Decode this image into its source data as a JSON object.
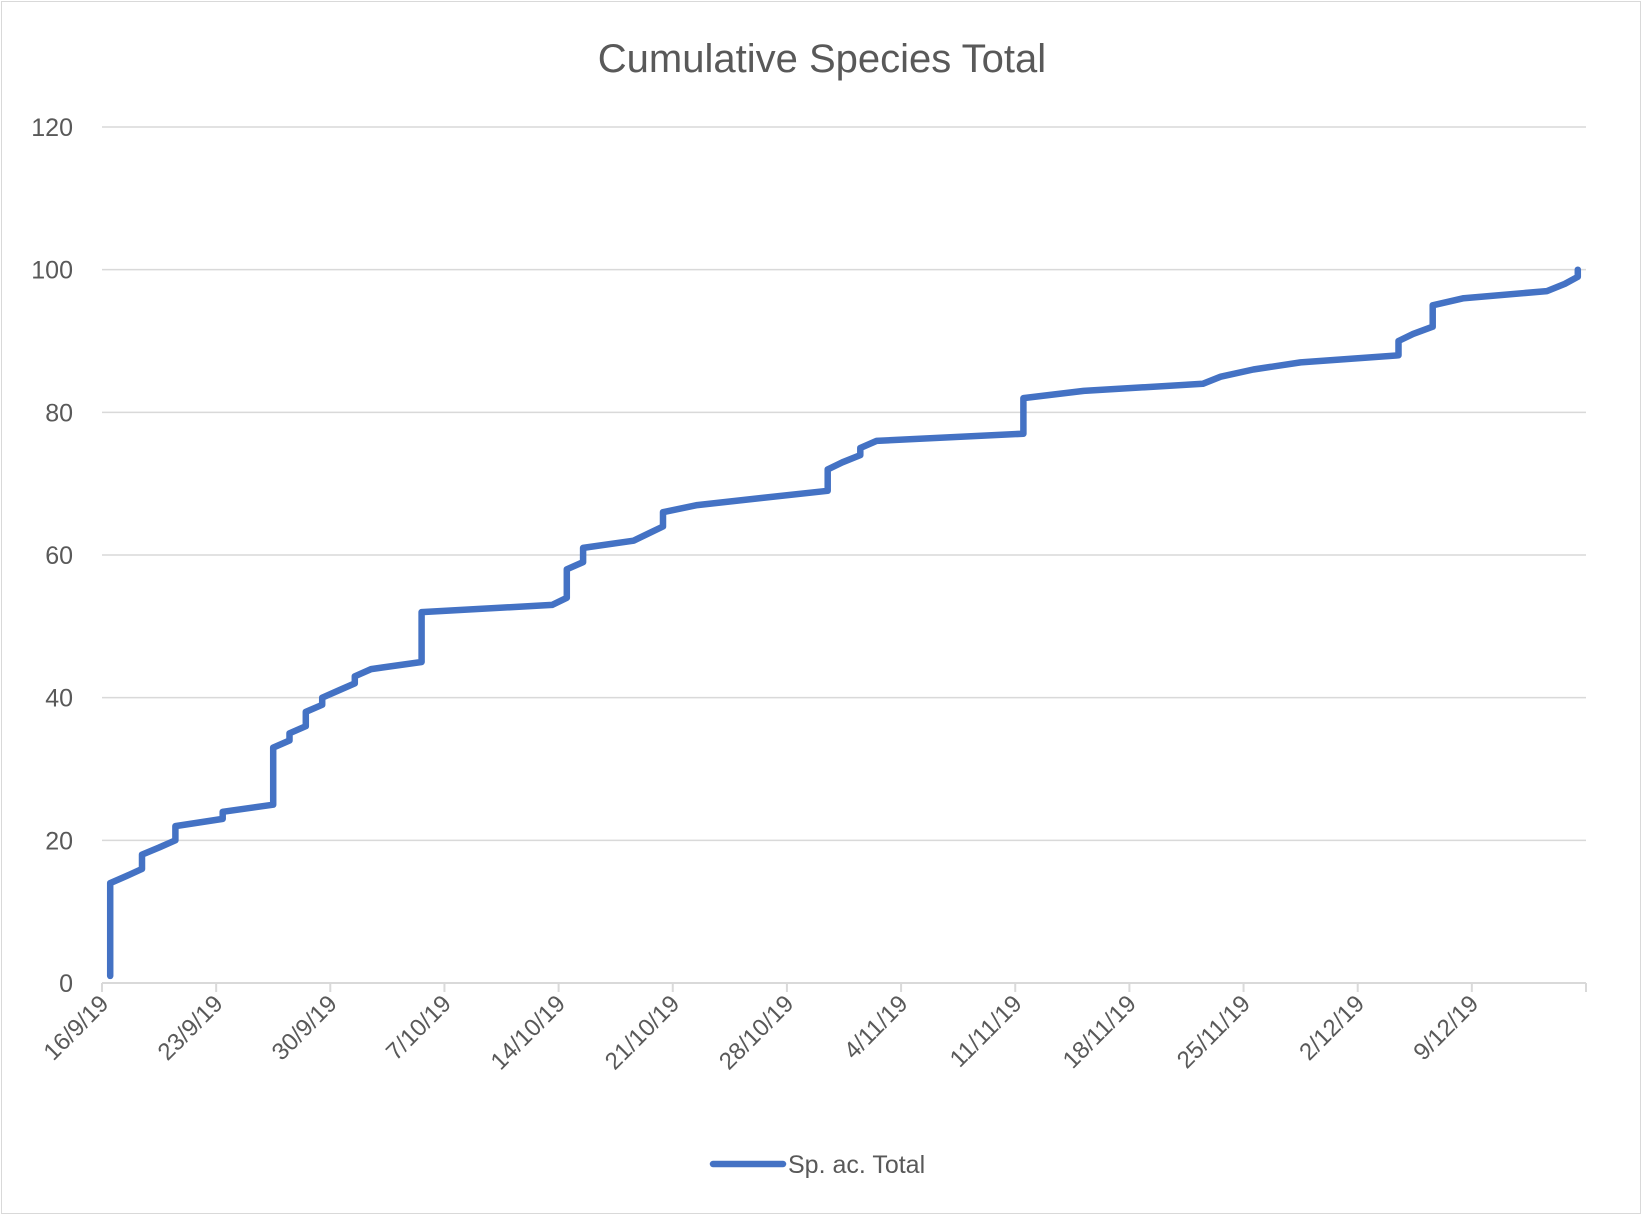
{
  "chart_data": {
    "type": "line",
    "title": "Cumulative Species Total",
    "xlabel": "",
    "ylabel": "",
    "x_unit": "days since 16/9/19",
    "xlim": [
      0,
      91
    ],
    "ylim": [
      0,
      120
    ],
    "y_ticks": [
      0,
      20,
      40,
      60,
      80,
      100,
      120
    ],
    "y_tick_labels": [
      "0",
      "20",
      "40",
      "60",
      "80",
      "100",
      "120"
    ],
    "x_ticks": [
      0,
      7,
      14,
      21,
      28,
      35,
      42,
      49,
      56,
      63,
      70,
      77,
      84,
      91
    ],
    "x_tick_labels": [
      "16/9/19",
      "23/9/19",
      "30/9/19",
      "7/10/19",
      "14/10/19",
      "21/10/19",
      "28/10/19",
      "4/11/19",
      "11/11/19",
      "18/11/19",
      "25/11/19",
      "2/12/19",
      "9/12/19",
      ""
    ],
    "grid": true,
    "legend_position": "bottom",
    "series": [
      {
        "name": "Sp. ac. Total",
        "color": "#4472C4",
        "x": [
          0.5,
          0.5,
          1.5,
          2.45,
          2.45,
          3.5,
          4.5,
          4.5,
          7.4,
          7.4,
          10.5,
          10.5,
          11.5,
          11.5,
          12.5,
          12.5,
          13.5,
          13.5,
          14.5,
          15.5,
          15.5,
          16.5,
          19.6,
          19.6,
          27.6,
          28.5,
          28.5,
          29.5,
          29.5,
          32.6,
          33.5,
          34.4,
          34.4,
          36.5,
          40.5,
          44.5,
          44.5,
          45.4,
          46.5,
          46.5,
          47.5,
          56.5,
          56.5,
          60.2,
          67.5,
          68.6,
          70.6,
          73.5,
          79.5,
          79.5,
          80.4,
          81.6,
          81.6,
          83.5,
          88.6,
          89.7,
          90.5,
          90.5
        ],
        "values": [
          1,
          14,
          15,
          16,
          18,
          19,
          20,
          22,
          23,
          24,
          25,
          33,
          34,
          35,
          36,
          38,
          39,
          40,
          41,
          42,
          43,
          44,
          45,
          52,
          53,
          54,
          58,
          59,
          61,
          62,
          63,
          64,
          66,
          67,
          68,
          69,
          72,
          73,
          74,
          75,
          76,
          77,
          82,
          83,
          84,
          85,
          86,
          87,
          88,
          90,
          91,
          92,
          95,
          96,
          97,
          98,
          99,
          100
        ]
      }
    ]
  }
}
